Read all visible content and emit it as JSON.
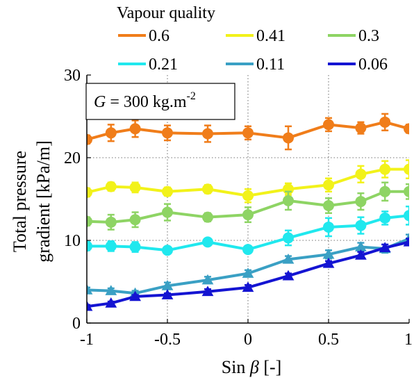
{
  "chart_data": {
    "type": "line",
    "title": "",
    "xlabel": "Sin β [-]",
    "xlabel_prefix": "Sin ",
    "xlabel_symbol": "β",
    "xlabel_suffix": " [-]",
    "ylabel_line1": "Total pressure",
    "ylabel_line2": "gradient [kPa/m]",
    "xlim": [
      -1,
      1
    ],
    "ylim": [
      0,
      30
    ],
    "xticks": [
      -1,
      -0.5,
      0,
      0.5,
      1
    ],
    "xtick_labels": [
      "-1",
      "-0.5",
      "0",
      "0.5",
      "1"
    ],
    "yticks": [
      0,
      10,
      20,
      30
    ],
    "ytick_labels": [
      "0",
      "10",
      "20",
      "30"
    ],
    "grid": "dotted",
    "legend_title": "Vapour quality",
    "legend_position": "top",
    "annotation": {
      "symbol": "G",
      "text": " = 300 kg.m",
      "superscript": "-2"
    },
    "x": [
      -1,
      -0.85,
      -0.7,
      -0.5,
      -0.25,
      0,
      0.25,
      0.5,
      0.7,
      0.85,
      1
    ],
    "series": [
      {
        "name": "0.6",
        "color": "#f07d1a",
        "marker": "circle",
        "values": [
          22.2,
          23.0,
          23.5,
          23.0,
          22.9,
          23.0,
          22.4,
          24.0,
          23.6,
          24.3,
          23.5
        ],
        "errors": [
          0.5,
          1.0,
          1.0,
          0.9,
          1.0,
          0.8,
          1.4,
          0.8,
          0.7,
          1.0,
          0.5
        ]
      },
      {
        "name": "0.41",
        "color": "#f2f21a",
        "marker": "circle",
        "values": [
          15.8,
          16.5,
          16.4,
          15.9,
          16.2,
          15.4,
          16.2,
          16.7,
          18.0,
          18.6,
          18.6
        ],
        "errors": [
          0.5,
          0.5,
          0.6,
          0.5,
          0.5,
          0.8,
          0.7,
          0.8,
          1.0,
          1.0,
          1.1
        ]
      },
      {
        "name": "0.3",
        "color": "#8ed464",
        "marker": "circle",
        "values": [
          12.3,
          12.2,
          12.5,
          13.4,
          12.8,
          13.1,
          14.8,
          14.2,
          14.7,
          15.9,
          15.9
        ],
        "errors": [
          0.5,
          0.9,
          0.9,
          1.0,
          0.5,
          0.9,
          1.1,
          0.9,
          1.0,
          1.1,
          0.9
        ]
      },
      {
        "name": "0.21",
        "color": "#20e8ee",
        "marker": "circle",
        "values": [
          9.3,
          9.3,
          9.2,
          8.8,
          9.8,
          8.9,
          10.3,
          11.6,
          11.8,
          12.7,
          13.0
        ],
        "errors": [
          0.5,
          0.6,
          0.6,
          0.4,
          0.4,
          0.4,
          0.9,
          1.1,
          1.0,
          0.8,
          1.1
        ]
      },
      {
        "name": "0.11",
        "color": "#3aa0c4",
        "marker": "triangle",
        "values": [
          4.0,
          3.9,
          3.6,
          4.5,
          5.2,
          6.0,
          7.7,
          8.3,
          9.2,
          9.0,
          10.2
        ],
        "errors": [
          0.3,
          0.3,
          0.3,
          0.4,
          0.4,
          0.4,
          0.4,
          0.5,
          0.5,
          0.5,
          0.5
        ]
      },
      {
        "name": "0.06",
        "color": "#1414d2",
        "marker": "triangle",
        "values": [
          2.0,
          2.4,
          3.2,
          3.4,
          3.8,
          4.3,
          5.7,
          7.2,
          8.2,
          9.1,
          9.8
        ],
        "errors": [
          0.2,
          0.2,
          0.2,
          0.2,
          0.3,
          0.3,
          0.3,
          0.3,
          0.4,
          0.4,
          0.4
        ]
      }
    ]
  }
}
